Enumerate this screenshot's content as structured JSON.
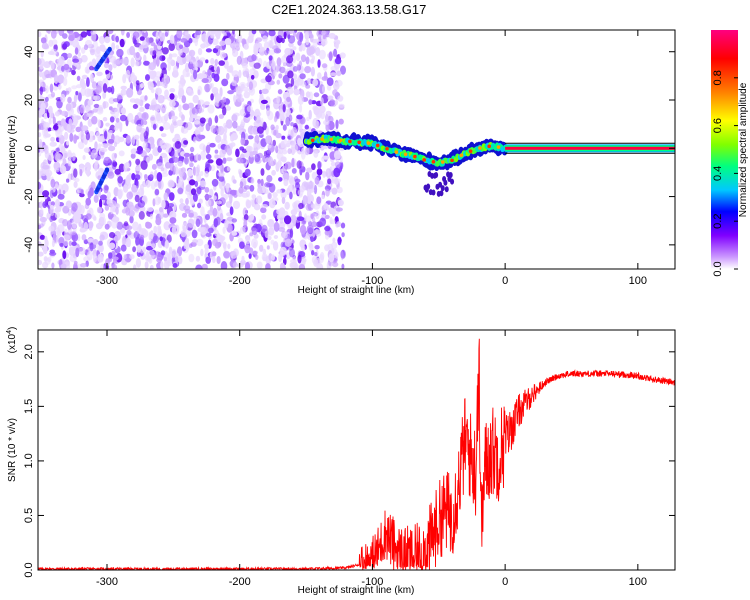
{
  "page": {
    "title": "C2E1.2024.363.13.58.G17"
  },
  "chart_data": [
    {
      "id": "spectrogram",
      "type": "heatmap",
      "title": "C2E1.2024.363.13.58.G17",
      "xlabel": "Height of straight line (km)",
      "ylabel": "Frequency (Hz)",
      "xlim": [
        -352,
        128
      ],
      "ylim": [
        -50,
        49
      ],
      "xticks": [
        -300,
        -200,
        -100,
        0,
        100
      ],
      "yticks": [
        -40,
        -20,
        0,
        20,
        40
      ],
      "colorbar": {
        "label": "Normalized spectral amplitude",
        "range": [
          0,
          1
        ],
        "ticks": [
          0.0,
          0.2,
          0.4,
          0.6,
          0.8
        ],
        "colors": [
          "#ffffff",
          "#cc99ff",
          "#8000ff",
          "#0000ff",
          "#00c8ff",
          "#00ff80",
          "#80ff00",
          "#ffff00",
          "#ff8000",
          "#ff0000",
          "#ff0080"
        ]
      },
      "noise_region": {
        "x": [
          -352,
          -122
        ],
        "y": [
          -50,
          49
        ],
        "amplitude": 0.15
      },
      "signal_track": [
        {
          "x": -150,
          "y": 3
        },
        {
          "x": -135,
          "y": 4
        },
        {
          "x": -120,
          "y": 3
        },
        {
          "x": -100,
          "y": 2
        },
        {
          "x": -90,
          "y": 0
        },
        {
          "x": -80,
          "y": -2
        },
        {
          "x": -70,
          "y": -3
        },
        {
          "x": -60,
          "y": -5
        },
        {
          "x": -50,
          "y": -6
        },
        {
          "x": -40,
          "y": -5
        },
        {
          "x": -30,
          "y": -2
        },
        {
          "x": -20,
          "y": 0
        },
        {
          "x": -10,
          "y": 1
        },
        {
          "x": 0,
          "y": 0
        },
        {
          "x": 128,
          "y": 0
        }
      ],
      "streak_segments": [
        {
          "x": [
            -308,
            -298
          ],
          "y": [
            33,
            41
          ]
        },
        {
          "x": [
            -308,
            -300
          ],
          "y": [
            -18,
            -9
          ]
        }
      ]
    },
    {
      "id": "snr",
      "type": "line",
      "xlabel": "Height of straight line (km)",
      "ylabel": "SNR (10 * v/v)",
      "y_multiplier": "(x10",
      "y_exponent": "4",
      "y_multiplier_close": ")",
      "xlim": [
        -352,
        128
      ],
      "ylim": [
        0,
        2.2
      ],
      "xticks": [
        -300,
        -200,
        -100,
        0,
        100
      ],
      "yticks": [
        0.0,
        0.5,
        1.0,
        1.5,
        2.0
      ],
      "series": [
        {
          "color": "#ff0000",
          "x": [
            -352,
            -300,
            -250,
            -200,
            -150,
            -120,
            -110,
            -100,
            -95,
            -90,
            -85,
            -80,
            -75,
            -70,
            -65,
            -60,
            -55,
            -50,
            -45,
            -40,
            -35,
            -30,
            -25,
            -22,
            -20,
            -18,
            -15,
            -10,
            -5,
            0,
            5,
            10,
            20,
            30,
            40,
            50,
            60,
            80,
            100,
            110,
            128
          ],
          "y": [
            0.01,
            0.01,
            0.01,
            0.01,
            0.01,
            0.02,
            0.05,
            0.1,
            0.2,
            0.35,
            0.25,
            0.15,
            0.12,
            0.1,
            0.12,
            0.18,
            0.3,
            0.45,
            0.55,
            0.5,
            0.8,
            1.2,
            1.0,
            0.9,
            2.2,
            0.4,
            0.95,
            1.1,
            1.05,
            1.2,
            1.3,
            1.45,
            1.6,
            1.72,
            1.78,
            1.8,
            1.8,
            1.8,
            1.78,
            1.75,
            1.72
          ]
        }
      ]
    }
  ]
}
